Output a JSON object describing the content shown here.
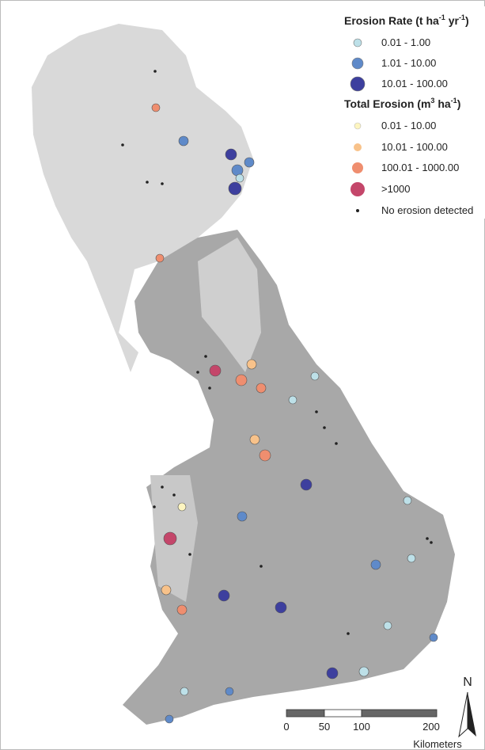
{
  "legend": {
    "erosion_rate": {
      "title": [
        "Erosion Rate (t ha",
        "-1",
        " yr",
        "-1",
        ")"
      ],
      "items": [
        "0.01 - 1.00",
        "1.01 - 10.00",
        "10.01 - 100.00"
      ]
    },
    "total_erosion": {
      "title": [
        "Total Erosion (m",
        "3",
        " ha",
        "-1",
        ")"
      ],
      "items": [
        "0.01 - 10.00",
        "10.01 - 100.00",
        "100.01 - 1000.00",
        ">1000"
      ]
    },
    "no_erosion": "No erosion detected"
  },
  "scale_bar": {
    "labels": [
      0,
      50,
      100,
      200
    ],
    "unit": "Kilometers"
  },
  "north_arrow": "N"
}
